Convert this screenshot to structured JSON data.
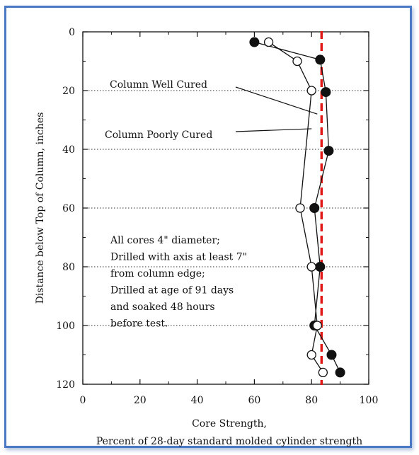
{
  "chart_data": {
    "type": "line",
    "orientation": "x-value-y-depth-inverted",
    "xlabel_line1": "Core Strength,",
    "xlabel_line2": "Percent of 28-day standard molded cylinder strength",
    "ylabel": "Distance below Top of Column, inches",
    "xlim": [
      0,
      100
    ],
    "ylim": [
      0,
      120
    ],
    "y_inverted": true,
    "x_ticks": [
      "0",
      "20",
      "40",
      "60",
      "80",
      "100"
    ],
    "y_ticks": [
      "0",
      "20",
      "40",
      "60",
      "80",
      "100",
      "120"
    ],
    "grid": "dotted horizontal at y ticks",
    "series": [
      {
        "key": "well_cured",
        "marker": "filled-circle",
        "points": [
          {
            "x": 60,
            "y": 3.5
          },
          {
            "x": 83,
            "y": 9.5
          },
          {
            "x": 85,
            "y": 20.5
          },
          {
            "x": 86,
            "y": 40.5
          },
          {
            "x": 81,
            "y": 60
          },
          {
            "x": 83,
            "y": 80
          },
          {
            "x": 81,
            "y": 100
          },
          {
            "x": 87,
            "y": 110
          },
          {
            "x": 90,
            "y": 116
          }
        ]
      },
      {
        "key": "poorly_cured",
        "marker": "open-circle",
        "points": [
          {
            "x": 65,
            "y": 3.5
          },
          {
            "x": 75,
            "y": 10
          },
          {
            "x": 80,
            "y": 20
          },
          {
            "x": 76,
            "y": 60
          },
          {
            "x": 80,
            "y": 80
          },
          {
            "x": 82,
            "y": 100
          },
          {
            "x": 80,
            "y": 110
          },
          {
            "x": 84,
            "y": 116
          }
        ]
      }
    ],
    "reference_line": {
      "x": 83.5,
      "color": "#e01818",
      "style": "dashed"
    },
    "labels": [
      {
        "key": "well_cured",
        "text": "Column Well Cured",
        "arrow_to": {
          "x": 82,
          "y": 28
        }
      },
      {
        "key": "poorly_cured",
        "text": "Column Poorly Cured",
        "arrow_to": {
          "x": 80,
          "y": 33
        }
      }
    ],
    "annotation_lines": [
      "All cores 4\" diameter;",
      "Drilled with axis at least 7\"",
      "from column edge;",
      "Drilled at age of 91 days",
      "and soaked 48 hours",
      "before test."
    ]
  }
}
